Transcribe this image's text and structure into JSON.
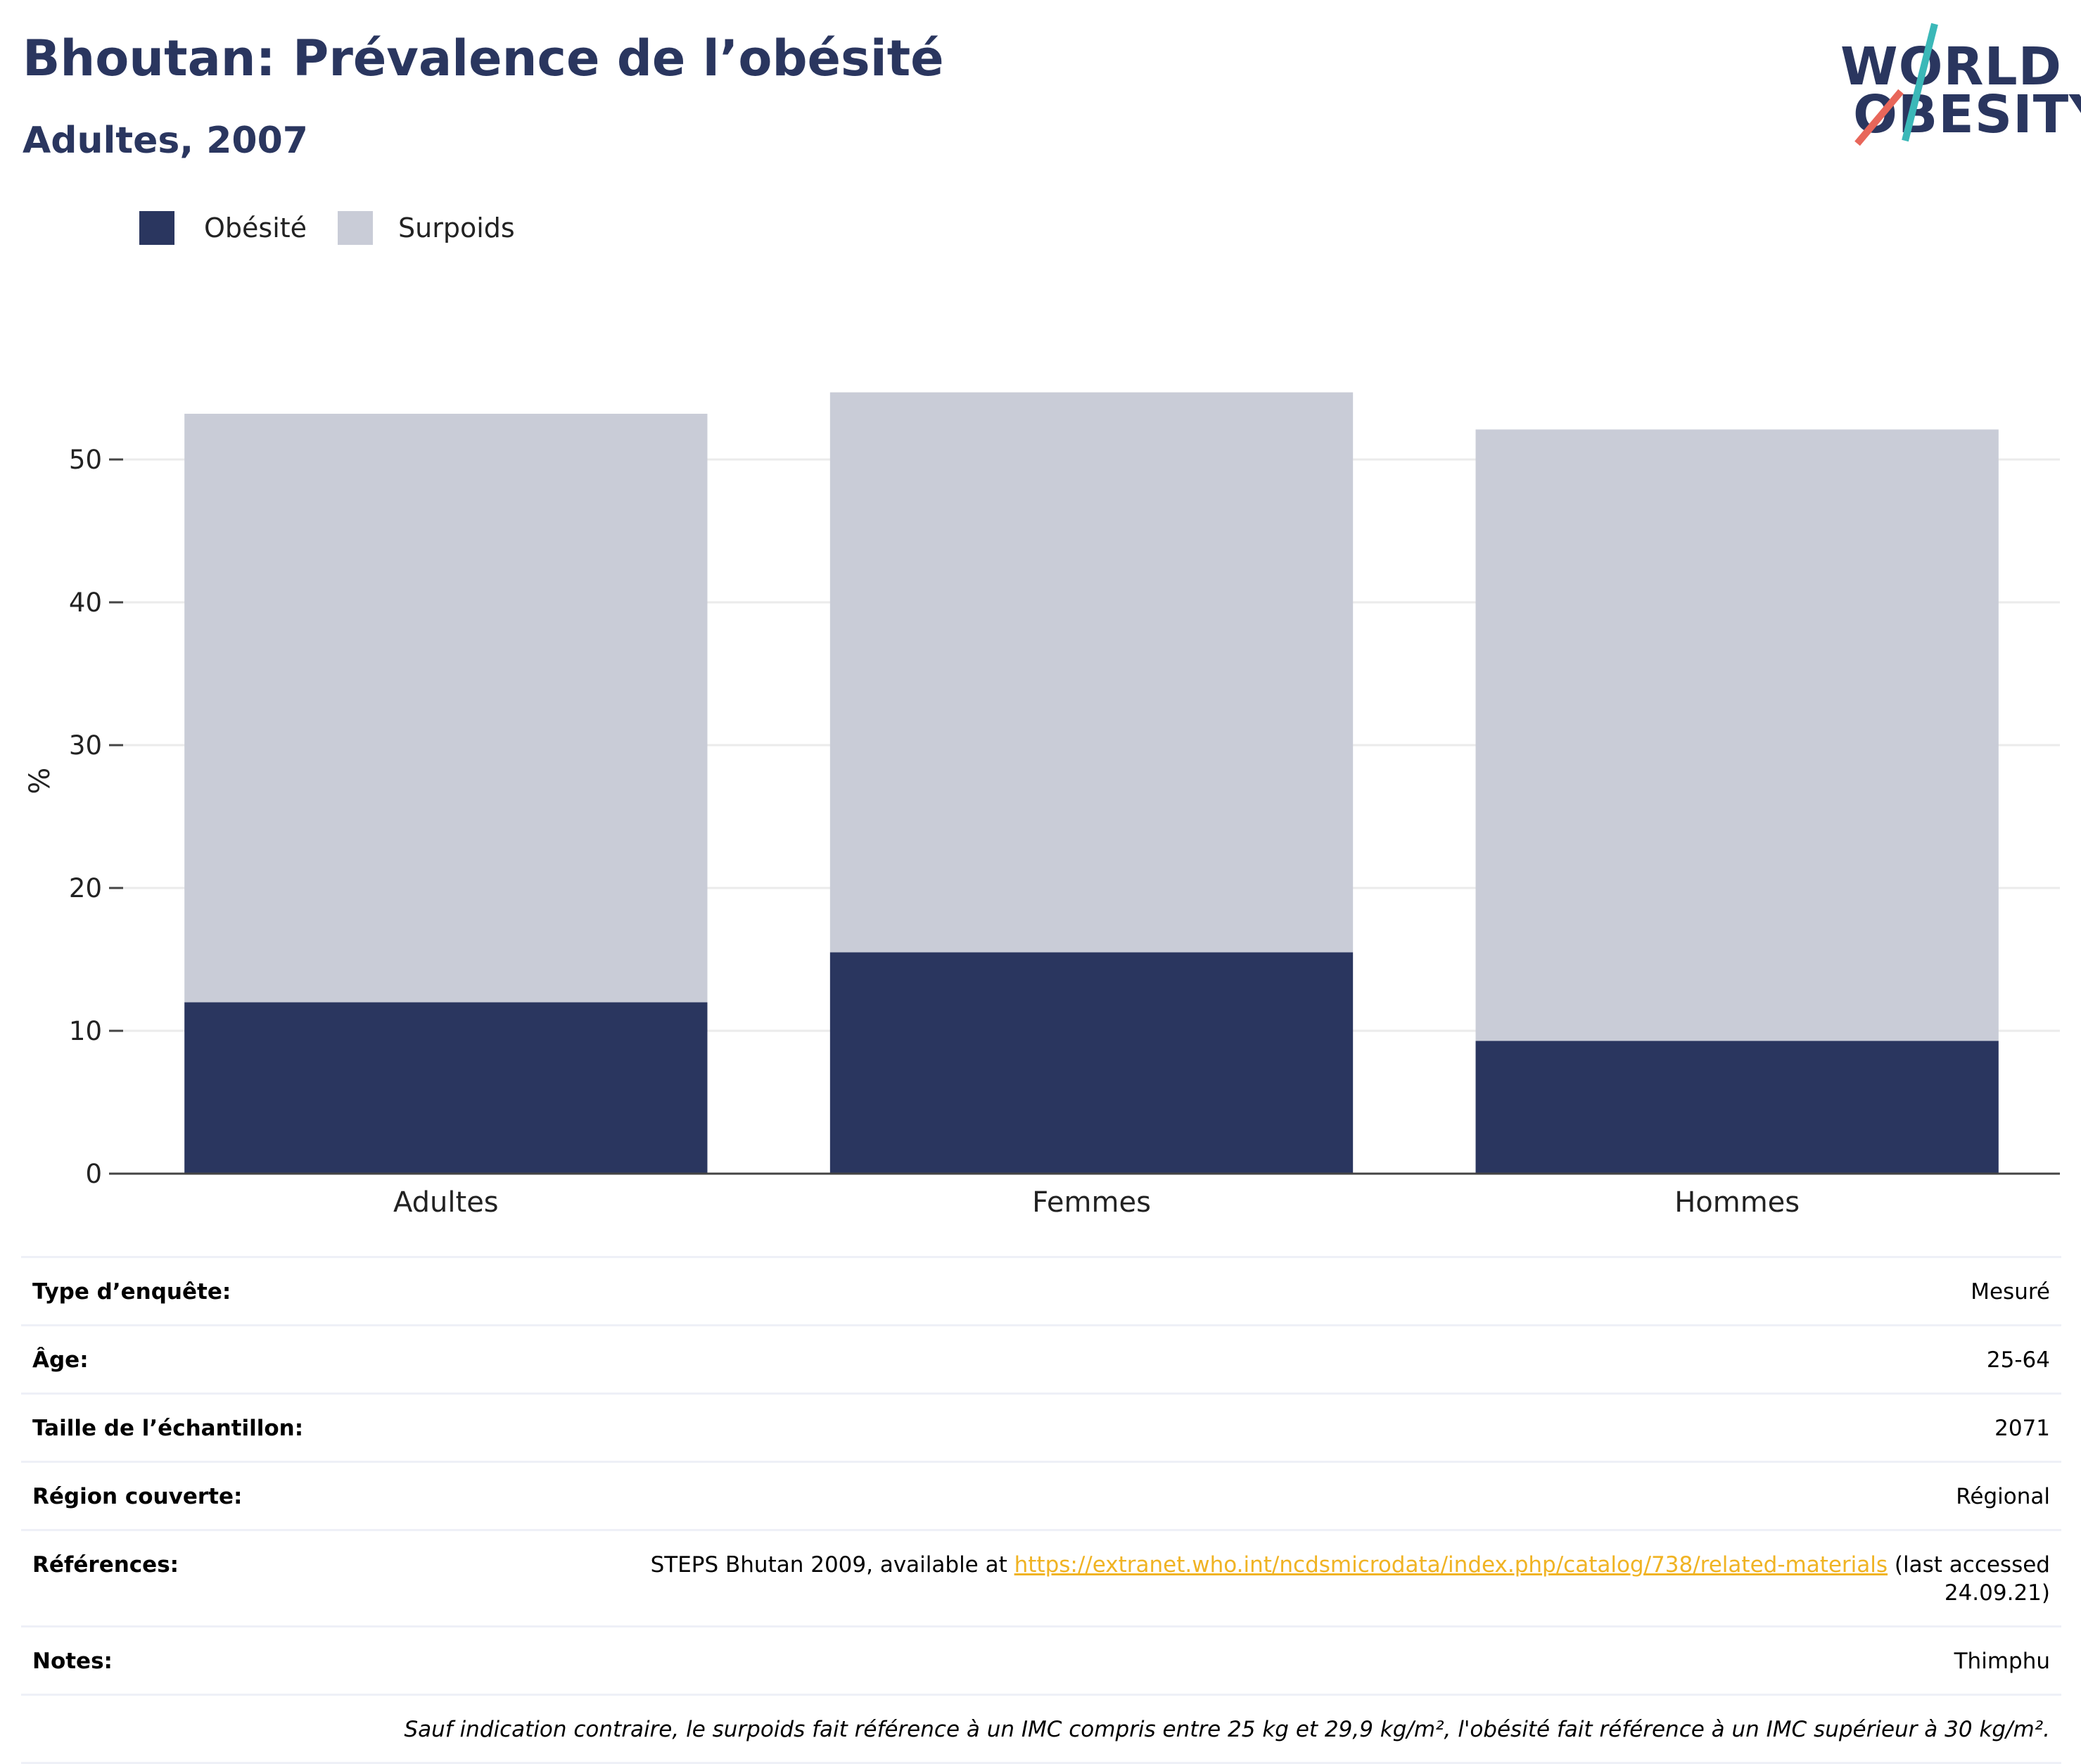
{
  "header": {
    "title": "Bhoutan: Prévalence de l’obésité",
    "subtitle": "Adultes, 2007"
  },
  "logo": {
    "line1": "WORLD",
    "line2": "OBESITY",
    "accent_colors": [
      "#3bb8b8",
      "#e8665a"
    ]
  },
  "legend": {
    "items": [
      {
        "label": "Obésité",
        "color": "#2a365f"
      },
      {
        "label": "Surpoids",
        "color": "#c9ccd7"
      }
    ]
  },
  "chart_data": {
    "type": "bar",
    "stacked": true,
    "categories": [
      "Adultes",
      "Femmes",
      "Hommes"
    ],
    "series": [
      {
        "name": "Obésité",
        "color": "#2a365f",
        "values": [
          12.0,
          15.5,
          9.3
        ]
      },
      {
        "name": "Surpoids",
        "color": "#c9ccd7",
        "values": [
          41.2,
          39.2,
          42.8
        ]
      }
    ],
    "ylabel": "%",
    "xlabel": "",
    "ylim": [
      0,
      57.5
    ],
    "yticks": [
      0,
      10,
      20,
      30,
      40,
      50
    ],
    "grid": true,
    "legend_position": "top-left"
  },
  "info": {
    "rows": [
      {
        "label": "Type d’enquête:",
        "value": "Mesuré"
      },
      {
        "label": "Âge:",
        "value": "25-64"
      },
      {
        "label": "Taille de l’échantillon:",
        "value": "2071"
      },
      {
        "label": "Région couverte:",
        "value": "Régional"
      }
    ],
    "references": {
      "label": "Références:",
      "prefix": "STEPS Bhutan 2009, available at ",
      "link": "https://extranet.who.int/ncdsmicrodata/index.php/catalog/738/related-materials",
      "suffix": " (last accessed 24.09.21)"
    },
    "notes": {
      "label": "Notes:",
      "value": "Thimphu"
    },
    "footnote": "Sauf indication contraire, le surpoids fait référence à un IMC compris entre 25 kg et 29,9 kg/m², l'obésité fait référence à un IMC supérieur à 30 kg/m²."
  }
}
